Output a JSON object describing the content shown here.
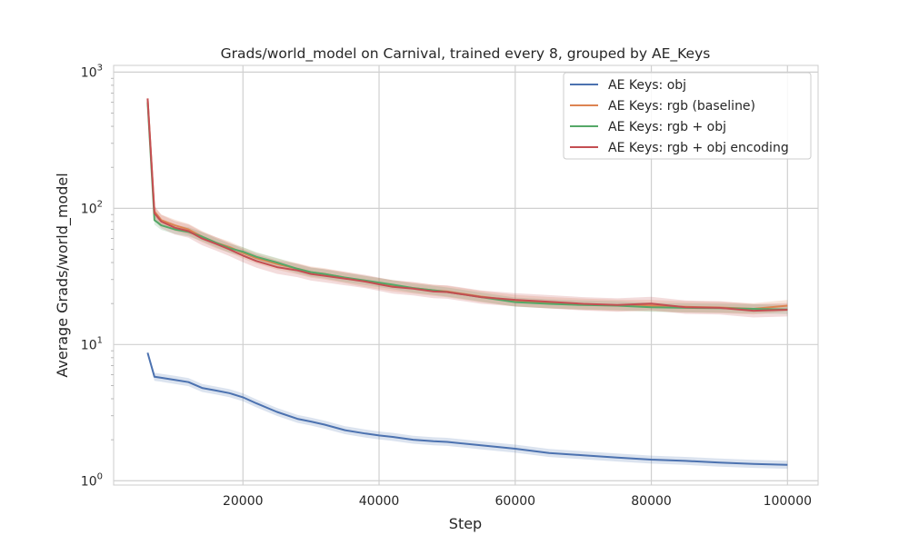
{
  "chart_data": {
    "type": "line",
    "title": "Grads/world_model on Carnival, trained every 8, grouped by AE_Keys",
    "xlabel": "Step",
    "ylabel": "Average Grads/world_model",
    "xlim": [
      1000,
      104500
    ],
    "ylim": [
      0.93,
      1120
    ],
    "yscale": "log",
    "grid": true,
    "legend_position": "top-right",
    "x_ticks": [
      {
        "value": 20000,
        "label": "20000"
      },
      {
        "value": 40000,
        "label": "40000"
      },
      {
        "value": 60000,
        "label": "60000"
      },
      {
        "value": 80000,
        "label": "80000"
      },
      {
        "value": 100000,
        "label": "100000"
      }
    ],
    "y_ticks": [
      {
        "value": 1,
        "base": "10",
        "exp": "0"
      },
      {
        "value": 10,
        "base": "10",
        "exp": "1"
      },
      {
        "value": 100,
        "base": "10",
        "exp": "2"
      },
      {
        "value": 1000,
        "base": "10",
        "exp": "3"
      }
    ],
    "x": [
      6000,
      7000,
      8000,
      10000,
      12000,
      14000,
      16000,
      18000,
      20000,
      22000,
      25000,
      28000,
      30000,
      32000,
      35000,
      38000,
      40000,
      42000,
      45000,
      48000,
      50000,
      55000,
      60000,
      65000,
      70000,
      75000,
      80000,
      85000,
      90000,
      95000,
      100000
    ],
    "series": [
      {
        "name": "AE Keys: obj",
        "color": "#4c72b0",
        "band": 0.07,
        "values": [
          8.7,
          5.8,
          5.7,
          5.5,
          5.3,
          4.8,
          4.6,
          4.4,
          4.1,
          3.7,
          3.2,
          2.85,
          2.72,
          2.58,
          2.35,
          2.22,
          2.15,
          2.1,
          2.0,
          1.95,
          1.93,
          1.82,
          1.72,
          1.6,
          1.54,
          1.48,
          1.43,
          1.4,
          1.36,
          1.33,
          1.31
        ]
      },
      {
        "name": "AE Keys: rgb (baseline)",
        "color": "#dd8452",
        "band": 0.1,
        "values": [
          640,
          95,
          82,
          75,
          70,
          62,
          56,
          52,
          47,
          43,
          39,
          36,
          34,
          33,
          31,
          29,
          28,
          27,
          26,
          25,
          24.5,
          22.5,
          21,
          20.3,
          19.8,
          19.4,
          19.3,
          18.9,
          18.7,
          18.3,
          19.3
        ]
      },
      {
        "name": "AE Keys: rgb + obj",
        "color": "#55a868",
        "band": 0.08,
        "values": [
          600,
          82,
          75,
          70,
          67,
          62,
          56,
          51,
          48,
          44,
          40,
          36,
          34,
          33,
          31,
          29.5,
          28.5,
          27.5,
          26,
          25,
          24.3,
          22.3,
          20.5,
          19.9,
          19.5,
          19.3,
          18.8,
          18.6,
          18.5,
          18.3,
          18.1
        ]
      },
      {
        "name": "AE Keys: rgb + obj encoding",
        "color": "#c44e52",
        "band": 0.12,
        "values": [
          640,
          92,
          80,
          72,
          68,
          60,
          55,
          50,
          45,
          41,
          37,
          35,
          33,
          32,
          30.5,
          29,
          27.7,
          26.5,
          25.7,
          24.5,
          24.3,
          22.3,
          21.3,
          20.6,
          19.9,
          19.5,
          20.0,
          18.8,
          18.6,
          17.7,
          18.0
        ]
      }
    ]
  }
}
